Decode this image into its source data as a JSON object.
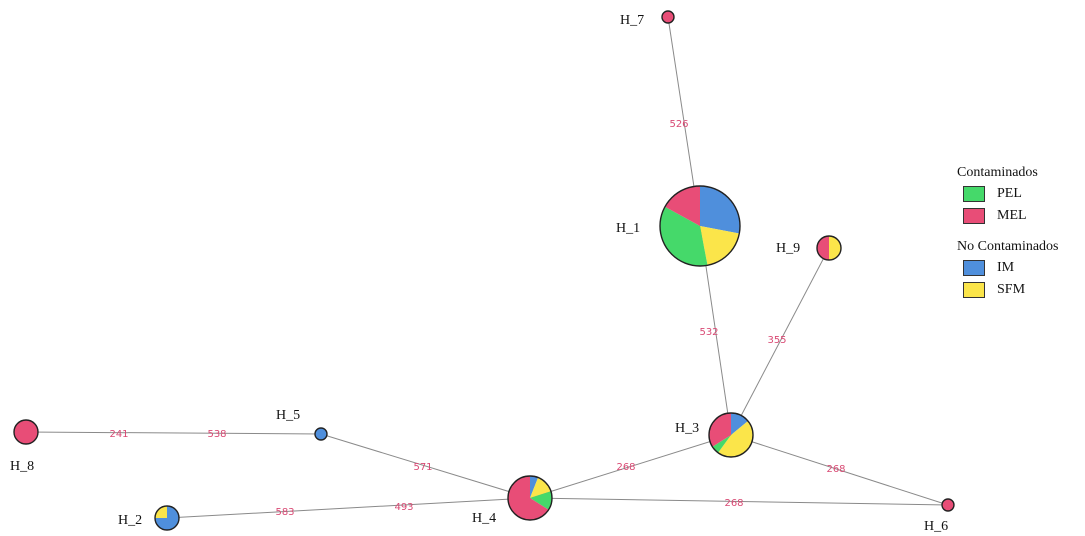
{
  "colors": {
    "PEL": "#45d96a",
    "MEL": "#e84d77",
    "IM": "#4f8fdc",
    "SFM": "#fbe54a"
  },
  "legend": {
    "groups": [
      {
        "title": "Contaminados",
        "items": [
          {
            "label": "PEL",
            "key": "PEL"
          },
          {
            "label": "MEL",
            "key": "MEL"
          }
        ]
      },
      {
        "title": "No Contaminados",
        "items": [
          {
            "label": "IM",
            "key": "IM"
          },
          {
            "label": "SFM",
            "key": "SFM"
          }
        ]
      }
    ]
  },
  "nodes": [
    {
      "id": "H_1",
      "label": "H_1",
      "size": 9,
      "composition": {
        "IM": 0.28,
        "SFM": 0.19,
        "PEL": 0.36,
        "MEL": 0.17
      }
    },
    {
      "id": "H_2",
      "label": "H_2",
      "size": 2,
      "composition": {
        "IM": 0.75,
        "SFM": 0.25
      }
    },
    {
      "id": "H_3",
      "label": "H_3",
      "size": 5,
      "composition": {
        "MEL": 0.34,
        "IM": 0.14,
        "SFM": 0.46,
        "PEL": 0.06
      }
    },
    {
      "id": "H_4",
      "label": "H_4",
      "size": 5,
      "composition": {
        "MEL": 0.66,
        "SFM": 0.14,
        "PEL": 0.14,
        "IM": 0.06
      }
    },
    {
      "id": "H_5",
      "label": "H_5",
      "size": 1,
      "composition": {
        "IM": 1
      }
    },
    {
      "id": "H_6",
      "label": "H_6",
      "size": 1,
      "composition": {
        "MEL": 1
      }
    },
    {
      "id": "H_7",
      "label": "H_7",
      "size": 1,
      "composition": {
        "MEL": 1
      }
    },
    {
      "id": "H_8",
      "label": "H_8",
      "size": 2,
      "composition": {
        "MEL": 1
      }
    },
    {
      "id": "H_9",
      "label": "H_9",
      "size": 2,
      "composition": {
        "MEL": 0.5,
        "SFM": 0.5
      }
    }
  ],
  "edges": [
    {
      "from": "H_7",
      "to": "H_1",
      "label": "526"
    },
    {
      "from": "H_1",
      "to": "H_3",
      "label": "532"
    },
    {
      "from": "H_9",
      "to": "H_3",
      "label": "355"
    },
    {
      "from": "H_3",
      "to": "H_4",
      "label": "268"
    },
    {
      "from": "H_3",
      "to": "H_6",
      "label": "268"
    },
    {
      "from": "H_4",
      "to": "H_6",
      "label": "268"
    },
    {
      "from": "H_8",
      "to": "H_5",
      "label": "241",
      "label2": "538"
    },
    {
      "from": "H_5",
      "to": "H_4",
      "label": "571"
    },
    {
      "from": "H_2",
      "to": "H_4",
      "label": "583",
      "label2": "493"
    }
  ]
}
